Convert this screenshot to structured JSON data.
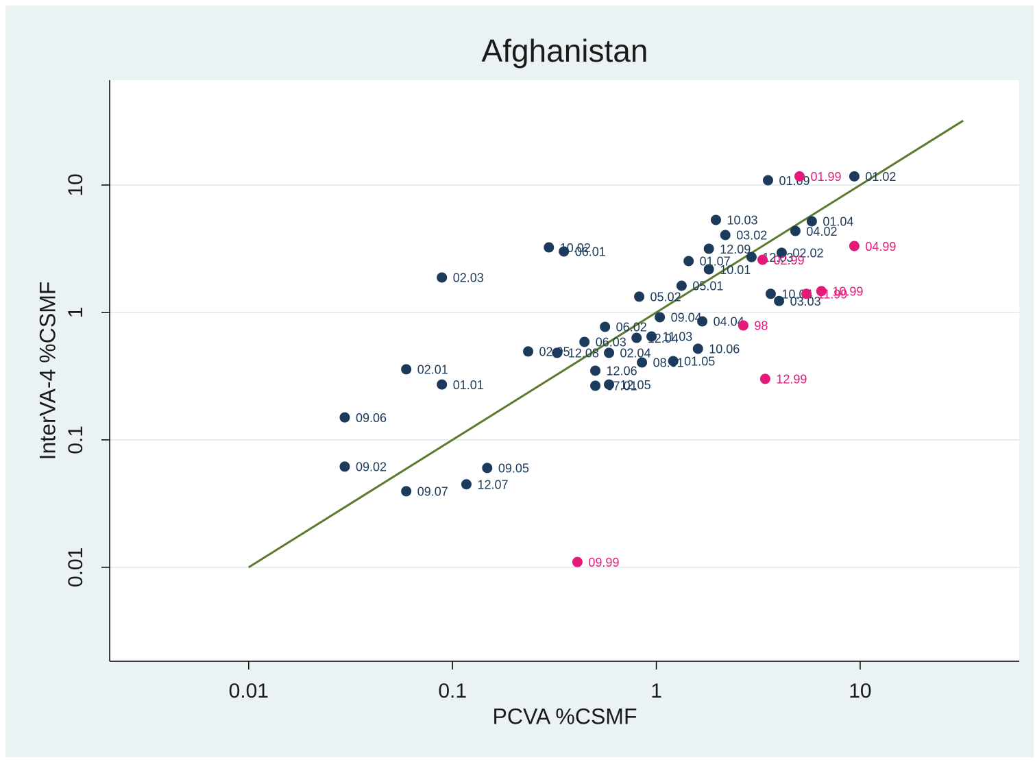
{
  "chart_data": {
    "type": "scatter",
    "title": "Afghanistan",
    "x_label": "PCVA %CSMF",
    "y_label": "InterVA-4 %CSMF",
    "xscale": "log",
    "yscale": "log",
    "grid": true,
    "xlim": [
      0.00208,
      60.3
    ],
    "ylim": [
      0.00183,
      66.5
    ],
    "xticks": [
      0.01,
      0.1,
      1,
      10
    ],
    "yticks": [
      0.01,
      0.1,
      1,
      10
    ],
    "fit_line": {
      "color": "#5b7a2e",
      "x": [
        0.01,
        32
      ],
      "y": [
        0.01,
        32
      ]
    },
    "series": [
      {
        "color": "#1b3a5c",
        "labels": [
          "01.09",
          "01.02",
          "10.03",
          "01.04",
          "04.02",
          "03.02",
          "12.09",
          "02.02",
          "12.03",
          "01.07",
          "10.01",
          "10.02",
          "06.01",
          "02.03",
          "05.01",
          "05.02",
          "10.04",
          "03.03",
          "09.04",
          "04.04",
          "06.02",
          "06.03",
          "12.04",
          "11.03",
          "02.05",
          "12.08",
          "02.04",
          "10.06",
          "08.01",
          "01.05",
          "12.06",
          "02.01",
          "01.01",
          "07.01",
          "12.05",
          "09.06",
          "09.02",
          "09.05",
          "12.07",
          "09.07"
        ],
        "x": [
          3.53,
          9.36,
          1.96,
          5.79,
          4.81,
          2.18,
          1.81,
          4.12,
          2.93,
          1.44,
          1.81,
          0.297,
          0.352,
          0.0887,
          1.33,
          0.824,
          3.64,
          4.0,
          1.04,
          1.68,
          0.56,
          0.444,
          0.8,
          0.947,
          0.235,
          0.326,
          0.586,
          1.6,
          0.85,
          1.21,
          0.502,
          0.0593,
          0.0887,
          0.502,
          0.586,
          0.0296,
          0.0296,
          0.148,
          0.117,
          0.0593
        ],
        "values": [
          10.9,
          11.7,
          5.32,
          5.19,
          4.36,
          4.05,
          3.16,
          2.94,
          2.72,
          2.53,
          2.18,
          3.24,
          3.01,
          1.88,
          1.62,
          1.33,
          1.4,
          1.23,
          0.917,
          0.851,
          0.771,
          0.587,
          0.632,
          0.648,
          0.494,
          0.482,
          0.482,
          0.519,
          0.405,
          0.415,
          0.349,
          0.358,
          0.272,
          0.266,
          0.272,
          0.15,
          0.0617,
          0.0602,
          0.0448,
          0.0395
        ]
      },
      {
        "color": "#e5197a",
        "labels": [
          "01.99",
          "04.99",
          "02.99",
          "11.99",
          "10.99",
          "98",
          "12.99",
          "09.99"
        ],
        "x": [
          5.04,
          9.36,
          3.32,
          5.45,
          6.45,
          2.67,
          3.42,
          0.41
        ],
        "values": [
          11.7,
          3.32,
          2.59,
          1.4,
          1.47,
          0.79,
          0.301,
          0.011
        ]
      }
    ]
  }
}
